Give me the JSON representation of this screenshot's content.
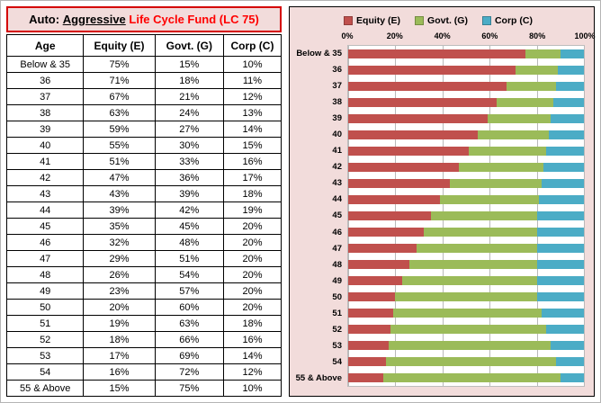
{
  "title": {
    "auto": "Auto: ",
    "scheme": "Aggressive",
    "rest": " Life Cycle Fund (LC 75)"
  },
  "colors": {
    "panel_pink": "#F2DCDB",
    "title_border_red": "#D40000",
    "title_text_red": "#FF0000",
    "equity_red": "#C0504D",
    "govt_green": "#9BBB59",
    "corp_blue": "#4BACC6"
  },
  "table": {
    "headers": [
      "Age",
      "Equity (E)",
      "Govt. (G)",
      "Corp (C)"
    ],
    "rows": [
      [
        "Below & 35",
        "75%",
        "15%",
        "10%"
      ],
      [
        "36",
        "71%",
        "18%",
        "11%"
      ],
      [
        "37",
        "67%",
        "21%",
        "12%"
      ],
      [
        "38",
        "63%",
        "24%",
        "13%"
      ],
      [
        "39",
        "59%",
        "27%",
        "14%"
      ],
      [
        "40",
        "55%",
        "30%",
        "15%"
      ],
      [
        "41",
        "51%",
        "33%",
        "16%"
      ],
      [
        "42",
        "47%",
        "36%",
        "17%"
      ],
      [
        "43",
        "43%",
        "39%",
        "18%"
      ],
      [
        "44",
        "39%",
        "42%",
        "19%"
      ],
      [
        "45",
        "35%",
        "45%",
        "20%"
      ],
      [
        "46",
        "32%",
        "48%",
        "20%"
      ],
      [
        "47",
        "29%",
        "51%",
        "20%"
      ],
      [
        "48",
        "26%",
        "54%",
        "20%"
      ],
      [
        "49",
        "23%",
        "57%",
        "20%"
      ],
      [
        "50",
        "20%",
        "60%",
        "20%"
      ],
      [
        "51",
        "19%",
        "63%",
        "18%"
      ],
      [
        "52",
        "18%",
        "66%",
        "16%"
      ],
      [
        "53",
        "17%",
        "69%",
        "14%"
      ],
      [
        "54",
        "16%",
        "72%",
        "12%"
      ],
      [
        "55 & Above",
        "15%",
        "75%",
        "10%"
      ]
    ]
  },
  "chart_data": {
    "type": "bar",
    "orientation": "horizontal",
    "stacked": true,
    "legend_position": "top",
    "background": "#F2DCDB",
    "plot_background": "#FFFFFF",
    "grid": true,
    "xlim": [
      0,
      100
    ],
    "x_ticks": [
      "0%",
      "20%",
      "40%",
      "60%",
      "80%",
      "100%"
    ],
    "categories": [
      "Below & 35",
      "36",
      "37",
      "38",
      "39",
      "40",
      "41",
      "42",
      "43",
      "44",
      "45",
      "46",
      "47",
      "48",
      "49",
      "50",
      "51",
      "52",
      "53",
      "54",
      "55 & Above"
    ],
    "series": [
      {
        "id": "equity",
        "name": "Equity (E)",
        "color": "#C0504D",
        "values": [
          75,
          71,
          67,
          63,
          59,
          55,
          51,
          47,
          43,
          39,
          35,
          32,
          29,
          26,
          23,
          20,
          19,
          18,
          17,
          16,
          15
        ]
      },
      {
        "id": "govt",
        "name": "Govt. (G)",
        "color": "#9BBB59",
        "values": [
          15,
          18,
          21,
          24,
          27,
          30,
          33,
          36,
          39,
          42,
          45,
          48,
          51,
          54,
          57,
          60,
          63,
          66,
          69,
          72,
          75
        ]
      },
      {
        "id": "corp",
        "name": "Corp (C)",
        "color": "#4BACC6",
        "values": [
          10,
          11,
          12,
          13,
          14,
          15,
          16,
          17,
          18,
          19,
          20,
          20,
          20,
          20,
          20,
          20,
          18,
          16,
          14,
          12,
          10
        ]
      }
    ]
  }
}
